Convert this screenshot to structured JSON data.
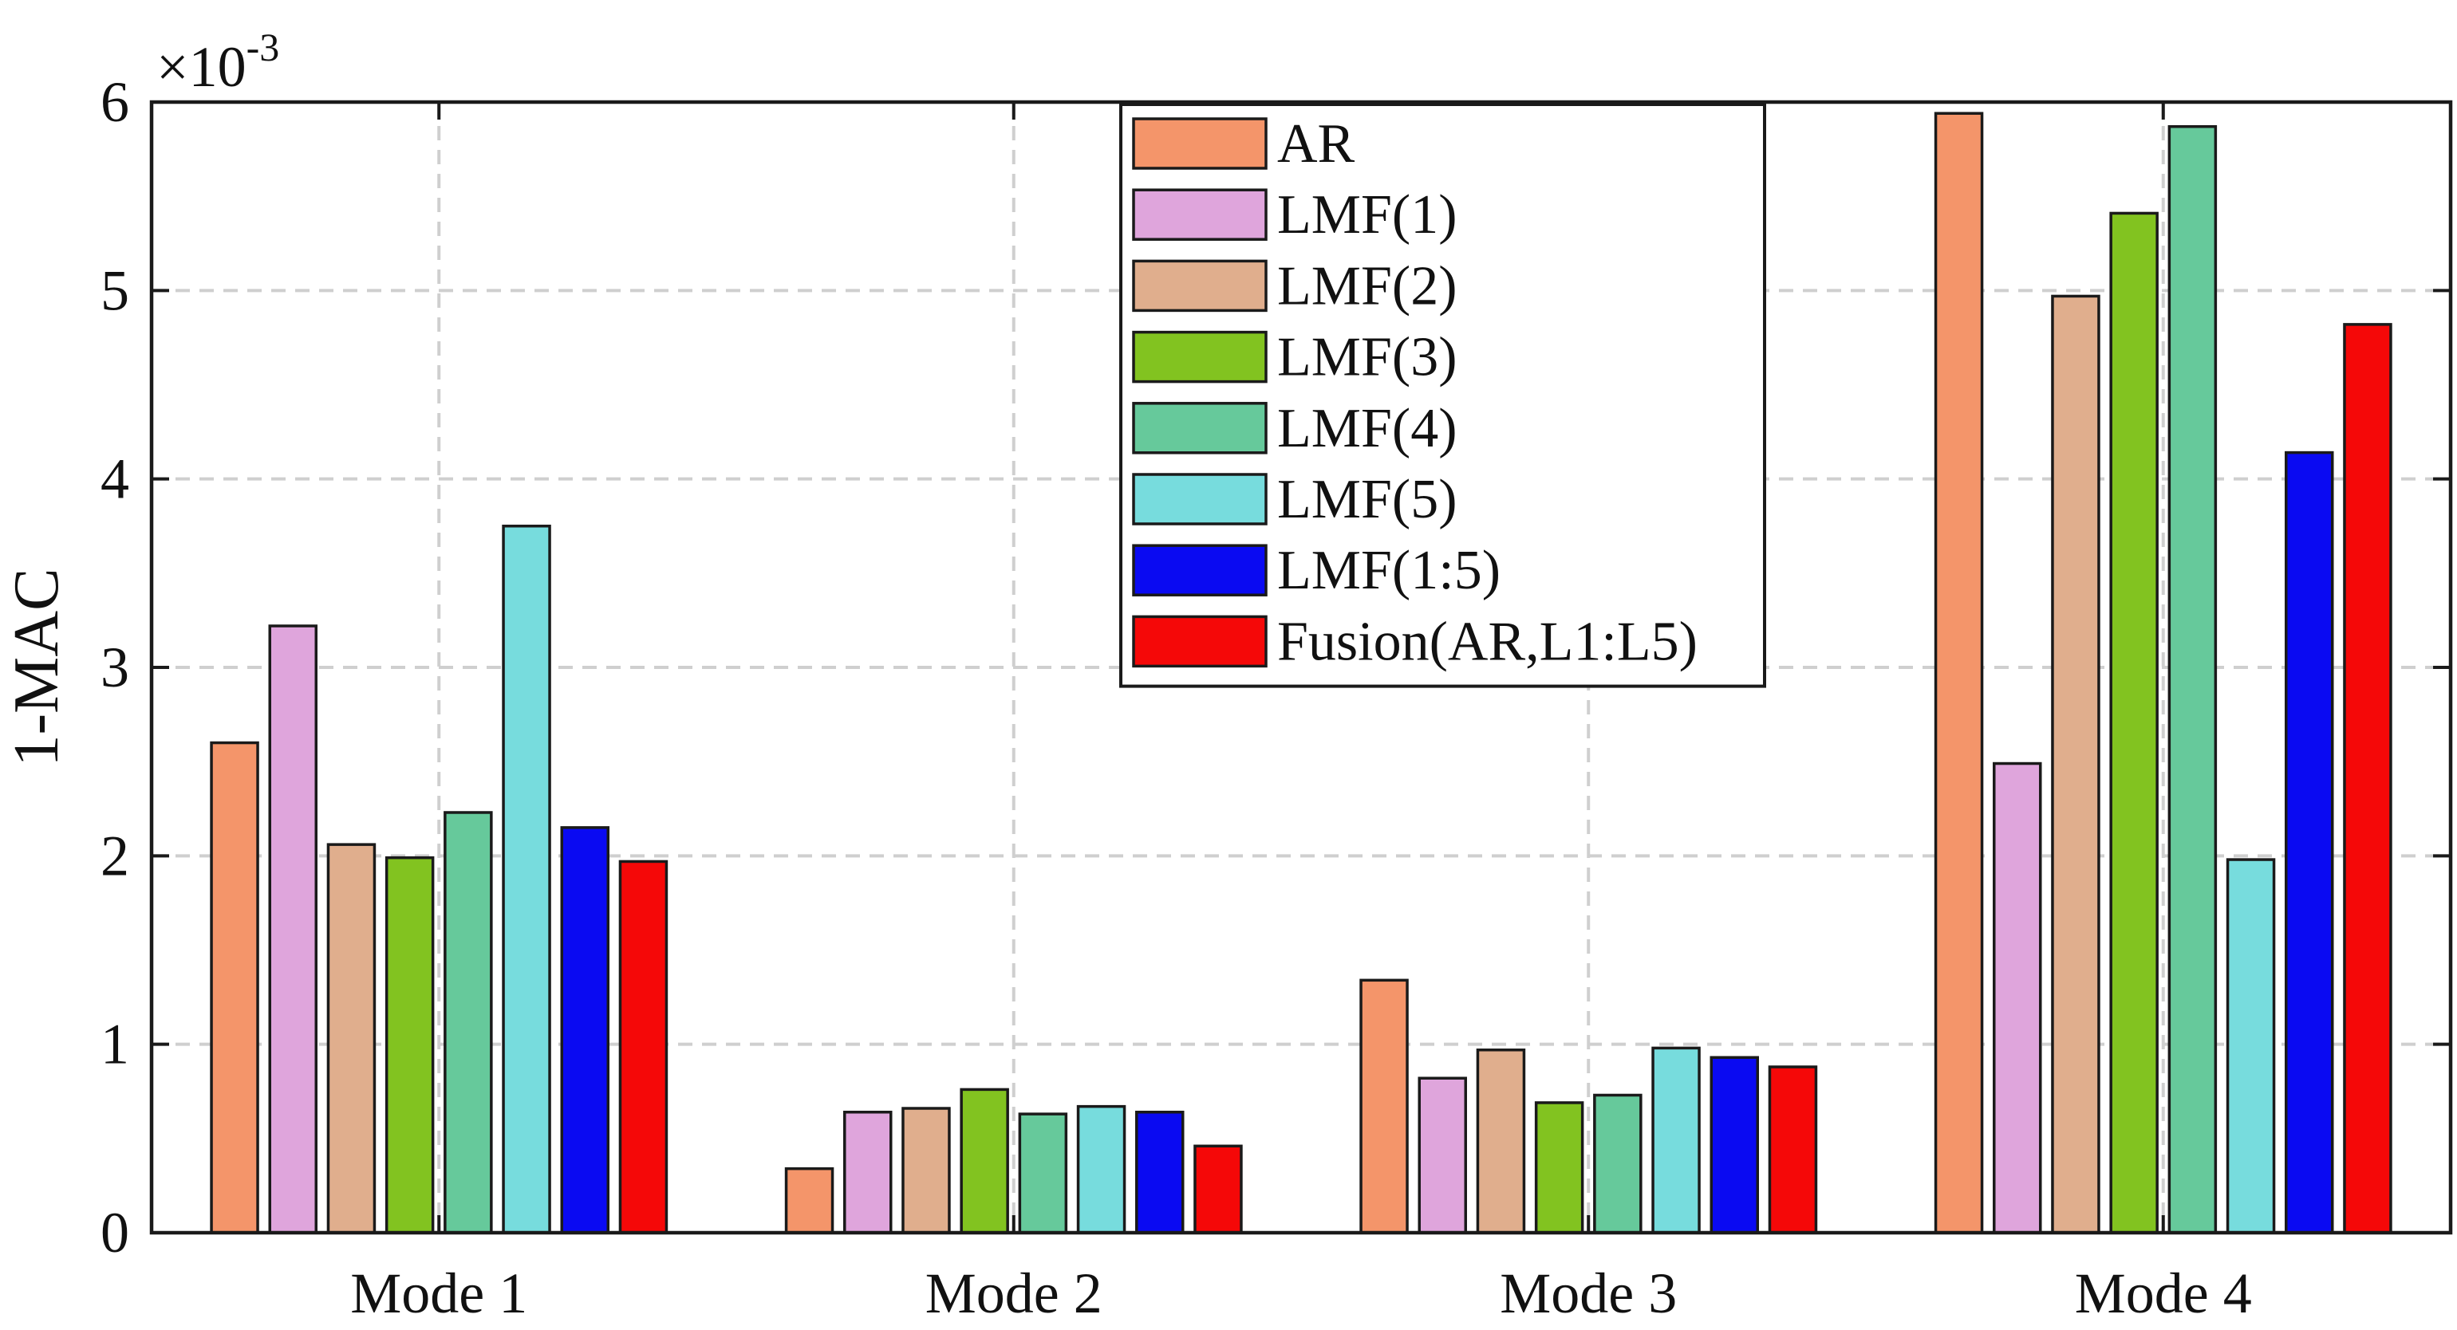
{
  "chart_data": {
    "type": "bar",
    "title": "",
    "xlabel": "",
    "ylabel": "1-MAC",
    "y_exponent_label": "×10",
    "y_exponent_power": "-3",
    "ylim": [
      0,
      6
    ],
    "yticks": [
      0,
      1,
      2,
      3,
      4,
      5,
      6
    ],
    "ytick_labels": [
      "0",
      "1",
      "2",
      "3",
      "4",
      "5",
      "6"
    ],
    "grid": true,
    "legend_position": "top-center",
    "categories": [
      "Mode 1",
      "Mode 2",
      "Mode 3",
      "Mode 4"
    ],
    "series": [
      {
        "name": "AR",
        "color": "#F4956A",
        "values": [
          2.6,
          0.34,
          1.34,
          5.94
        ]
      },
      {
        "name": "LMF(1)",
        "color": "#DFA5DC",
        "values": [
          3.22,
          0.64,
          0.82,
          2.49
        ]
      },
      {
        "name": "LMF(2)",
        "color": "#E0AE8D",
        "values": [
          2.06,
          0.66,
          0.97,
          4.97
        ]
      },
      {
        "name": "LMF(3)",
        "color": "#82C320",
        "values": [
          1.99,
          0.76,
          0.69,
          5.41
        ]
      },
      {
        "name": "LMF(4)",
        "color": "#66C99B",
        "values": [
          2.23,
          0.63,
          0.73,
          5.87
        ]
      },
      {
        "name": "LMF(5)",
        "color": "#77DCDD",
        "values": [
          3.75,
          0.67,
          0.98,
          1.98
        ]
      },
      {
        "name": "LMF(1:5)",
        "color": "#0A0AF2",
        "values": [
          2.15,
          0.64,
          0.93,
          4.14
        ]
      },
      {
        "name": "Fusion(AR,L1:L5)",
        "color": "#F50808",
        "values": [
          1.97,
          0.46,
          0.88,
          4.82
        ]
      }
    ]
  }
}
